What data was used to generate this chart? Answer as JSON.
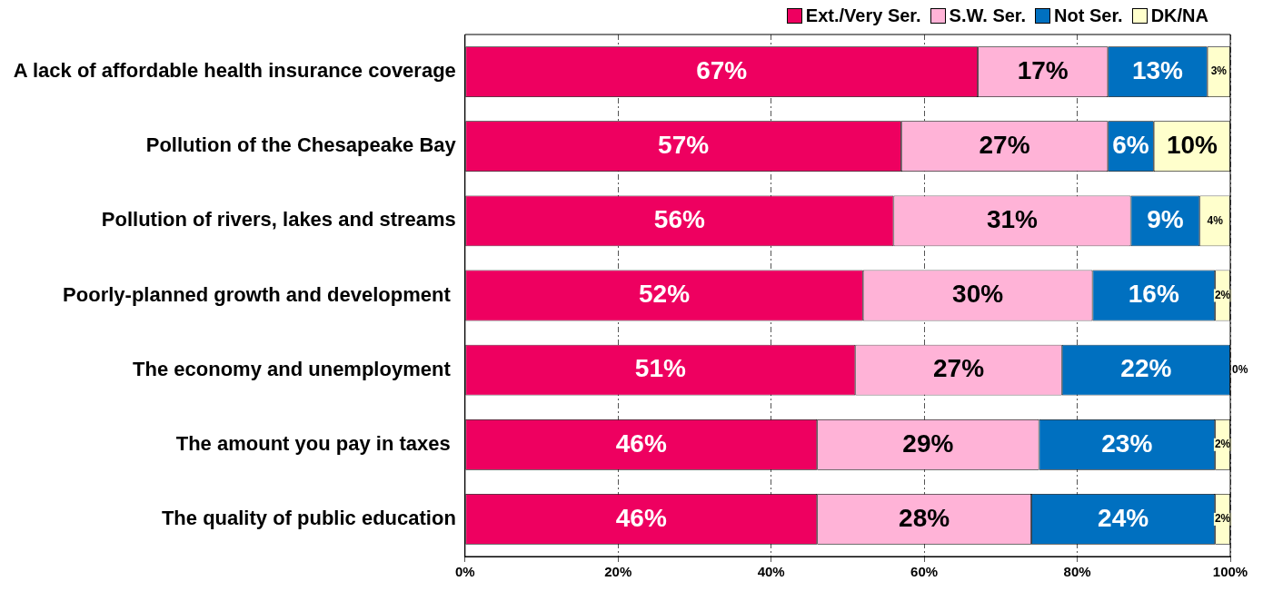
{
  "chart_data": {
    "type": "bar",
    "orientation": "horizontal",
    "stacked": true,
    "categories": [
      "A lack of affordable health insurance coverage",
      "Pollution of the Chesapeake Bay",
      "Pollution of rivers, lakes and streams",
      "Poorly-planned growth and development ",
      "The economy and unemployment ",
      "The amount you pay in taxes ",
      "The quality of public education"
    ],
    "series": [
      {
        "name": "Ext./Very Ser.",
        "color": "#ee0060",
        "values": [
          67,
          57,
          56,
          52,
          51,
          46,
          46
        ],
        "value_labels": [
          "67%",
          "57%",
          "56%",
          "52%",
          "51%",
          "46%",
          "46%"
        ]
      },
      {
        "name": "S.W. Ser.",
        "color": "#ffb3d7",
        "values": [
          17,
          27,
          31,
          30,
          27,
          29,
          28
        ],
        "value_labels": [
          "17%",
          "27%",
          "31%",
          "30%",
          "27%",
          "29%",
          "28%"
        ]
      },
      {
        "name": "Not Ser.",
        "color": "#0070c0",
        "values": [
          13,
          6,
          9,
          16,
          22,
          23,
          24
        ],
        "value_labels": [
          "13%",
          "6%",
          "9%",
          "16%",
          "22%",
          "23%",
          "24%"
        ]
      },
      {
        "name": "DK/NA",
        "color": "#ffffcc",
        "values": [
          3,
          10,
          4,
          2,
          0,
          2,
          2
        ],
        "value_labels": [
          "3%",
          "10%",
          "4%",
          "2%",
          "0%",
          "2%",
          "2%"
        ]
      }
    ],
    "xlim": [
      0,
      100
    ],
    "xticks": [
      {
        "value": 0,
        "label": "0%"
      },
      {
        "value": 20,
        "label": "20%"
      },
      {
        "value": 40,
        "label": "40%"
      },
      {
        "value": 60,
        "label": "60%"
      },
      {
        "value": 80,
        "label": "80%"
      },
      {
        "value": 100,
        "label": "100%"
      }
    ],
    "grid": "x",
    "legend": "top"
  }
}
